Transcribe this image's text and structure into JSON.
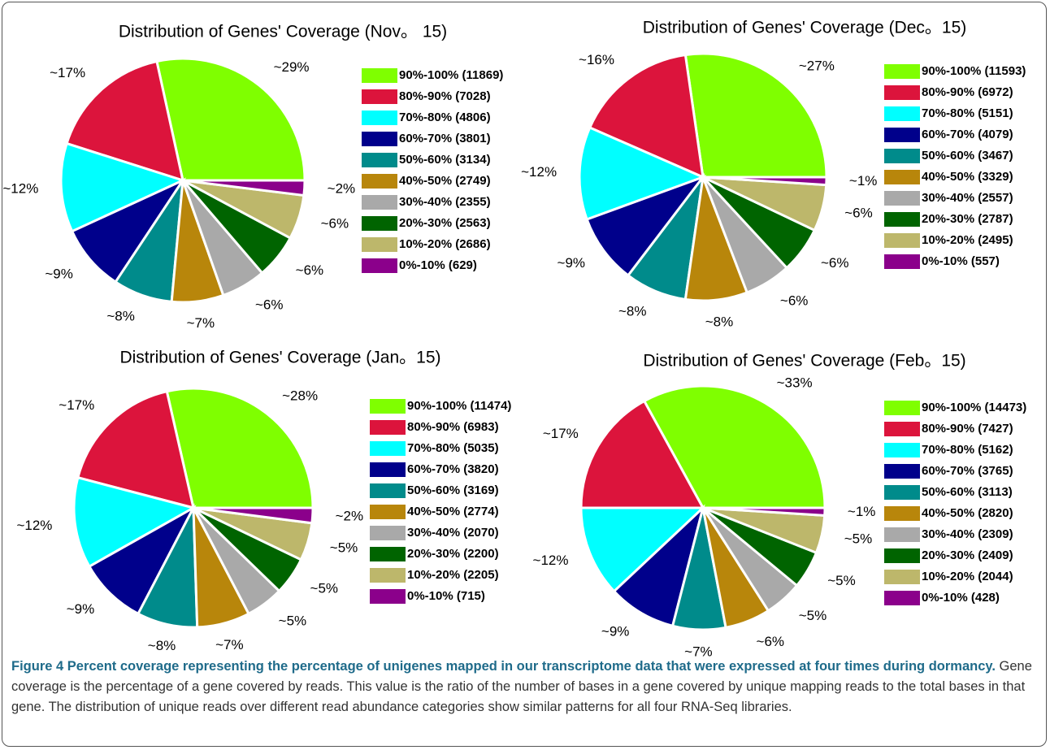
{
  "chart_data": [
    {
      "type": "pie",
      "title": "Distribution of Genes' Coverage (Nov。 15)",
      "categories": [
        "90%-100% (11869)",
        "80%-90% (7028)",
        "70%-80% (4806)",
        "60%-70% (3801)",
        "50%-60% (3134)",
        "40%-50% (2749)",
        "30%-40% (2355)",
        "20%-30% (2563)",
        "10%-20% (2686)",
        "0%-10% (629)"
      ],
      "values": [
        29,
        17,
        12,
        9,
        8,
        7,
        6,
        6,
        6,
        2
      ],
      "value_labels": [
        "~29%",
        "~17%",
        "~12%",
        "~9%",
        "~8%",
        "~7%",
        "~6%",
        "~6%",
        "~6%",
        "~2%"
      ],
      "colors": [
        "#7fff00",
        "#dc143c",
        "#00ffff",
        "#00008b",
        "#008b8b",
        "#b8860b",
        "#a9a9a9",
        "#006400",
        "#bdb76b",
        "#8b008b"
      ]
    },
    {
      "type": "pie",
      "title": "Distribution of Genes' Coverage (Dec。15)",
      "categories": [
        "90%-100% (11593)",
        "80%-90% (6972)",
        "70%-80% (5151)",
        "60%-70% (4079)",
        "50%-60% (3467)",
        "40%-50% (3329)",
        "30%-40% (2557)",
        "20%-30% (2787)",
        "10%-20% (2495)",
        "0%-10% (557)"
      ],
      "values": [
        27,
        16,
        12,
        9,
        8,
        8,
        6,
        6,
        6,
        1
      ],
      "value_labels": [
        "~27%",
        "~16%",
        "~12%",
        "~9%",
        "~8%",
        "~8%",
        "~6%",
        "~6%",
        "~6%",
        "~1%"
      ],
      "colors": [
        "#7fff00",
        "#dc143c",
        "#00ffff",
        "#00008b",
        "#008b8b",
        "#b8860b",
        "#a9a9a9",
        "#006400",
        "#bdb76b",
        "#8b008b"
      ]
    },
    {
      "type": "pie",
      "title": "Distribution of Genes' Coverage (Jan。15)",
      "categories": [
        "90%-100% (11474)",
        "80%-90% (6983)",
        "70%-80% (5035)",
        "60%-70% (3820)",
        "50%-60% (3169)",
        "40%-50% (2774)",
        "30%-40% (2070)",
        "20%-30% (2200)",
        "10%-20% (2205)",
        "0%-10% (715)"
      ],
      "values": [
        28,
        17,
        12,
        9,
        8,
        7,
        5,
        5,
        5,
        2
      ],
      "value_labels": [
        "~28%",
        "~17%",
        "~12%",
        "~9%",
        "~8%",
        "~7%",
        "~5%",
        "~5%",
        "~5%",
        "~2%"
      ],
      "colors": [
        "#7fff00",
        "#dc143c",
        "#00ffff",
        "#00008b",
        "#008b8b",
        "#b8860b",
        "#a9a9a9",
        "#006400",
        "#bdb76b",
        "#8b008b"
      ]
    },
    {
      "type": "pie",
      "title": "Distribution of Genes' Coverage (Feb。15)",
      "categories": [
        "90%-100% (14473)",
        "80%-90% (7427)",
        "70%-80% (5162)",
        "60%-70% (3765)",
        "50%-60% (3113)",
        "40%-50% (2820)",
        "30%-40% (2309)",
        "20%-30% (2409)",
        "10%-20% (2044)",
        "0%-10% (428)"
      ],
      "values": [
        33,
        17,
        12,
        9,
        7,
        6,
        5,
        5,
        5,
        1
      ],
      "value_labels": [
        "~33%",
        "~17%",
        "~12%",
        "~9%",
        "~7%",
        "~6%",
        "~5%",
        "~5%",
        "~5%",
        "~1%"
      ],
      "colors": [
        "#7fff00",
        "#dc143c",
        "#00ffff",
        "#00008b",
        "#008b8b",
        "#b8860b",
        "#a9a9a9",
        "#006400",
        "#bdb76b",
        "#8b008b"
      ]
    }
  ],
  "caption": {
    "label": "Figure 4 Percent coverage representing the percentage of unigenes mapped in our transcriptome data that were expressed at four times during dormancy.",
    "text": "Gene coverage is the percentage of a gene covered by reads. This value is the ratio of the number of bases in a gene covered by unique mapping reads to the total bases in that gene. The distribution of unique reads over different read abundance categories show similar patterns for all four RNA-Seq libraries."
  }
}
